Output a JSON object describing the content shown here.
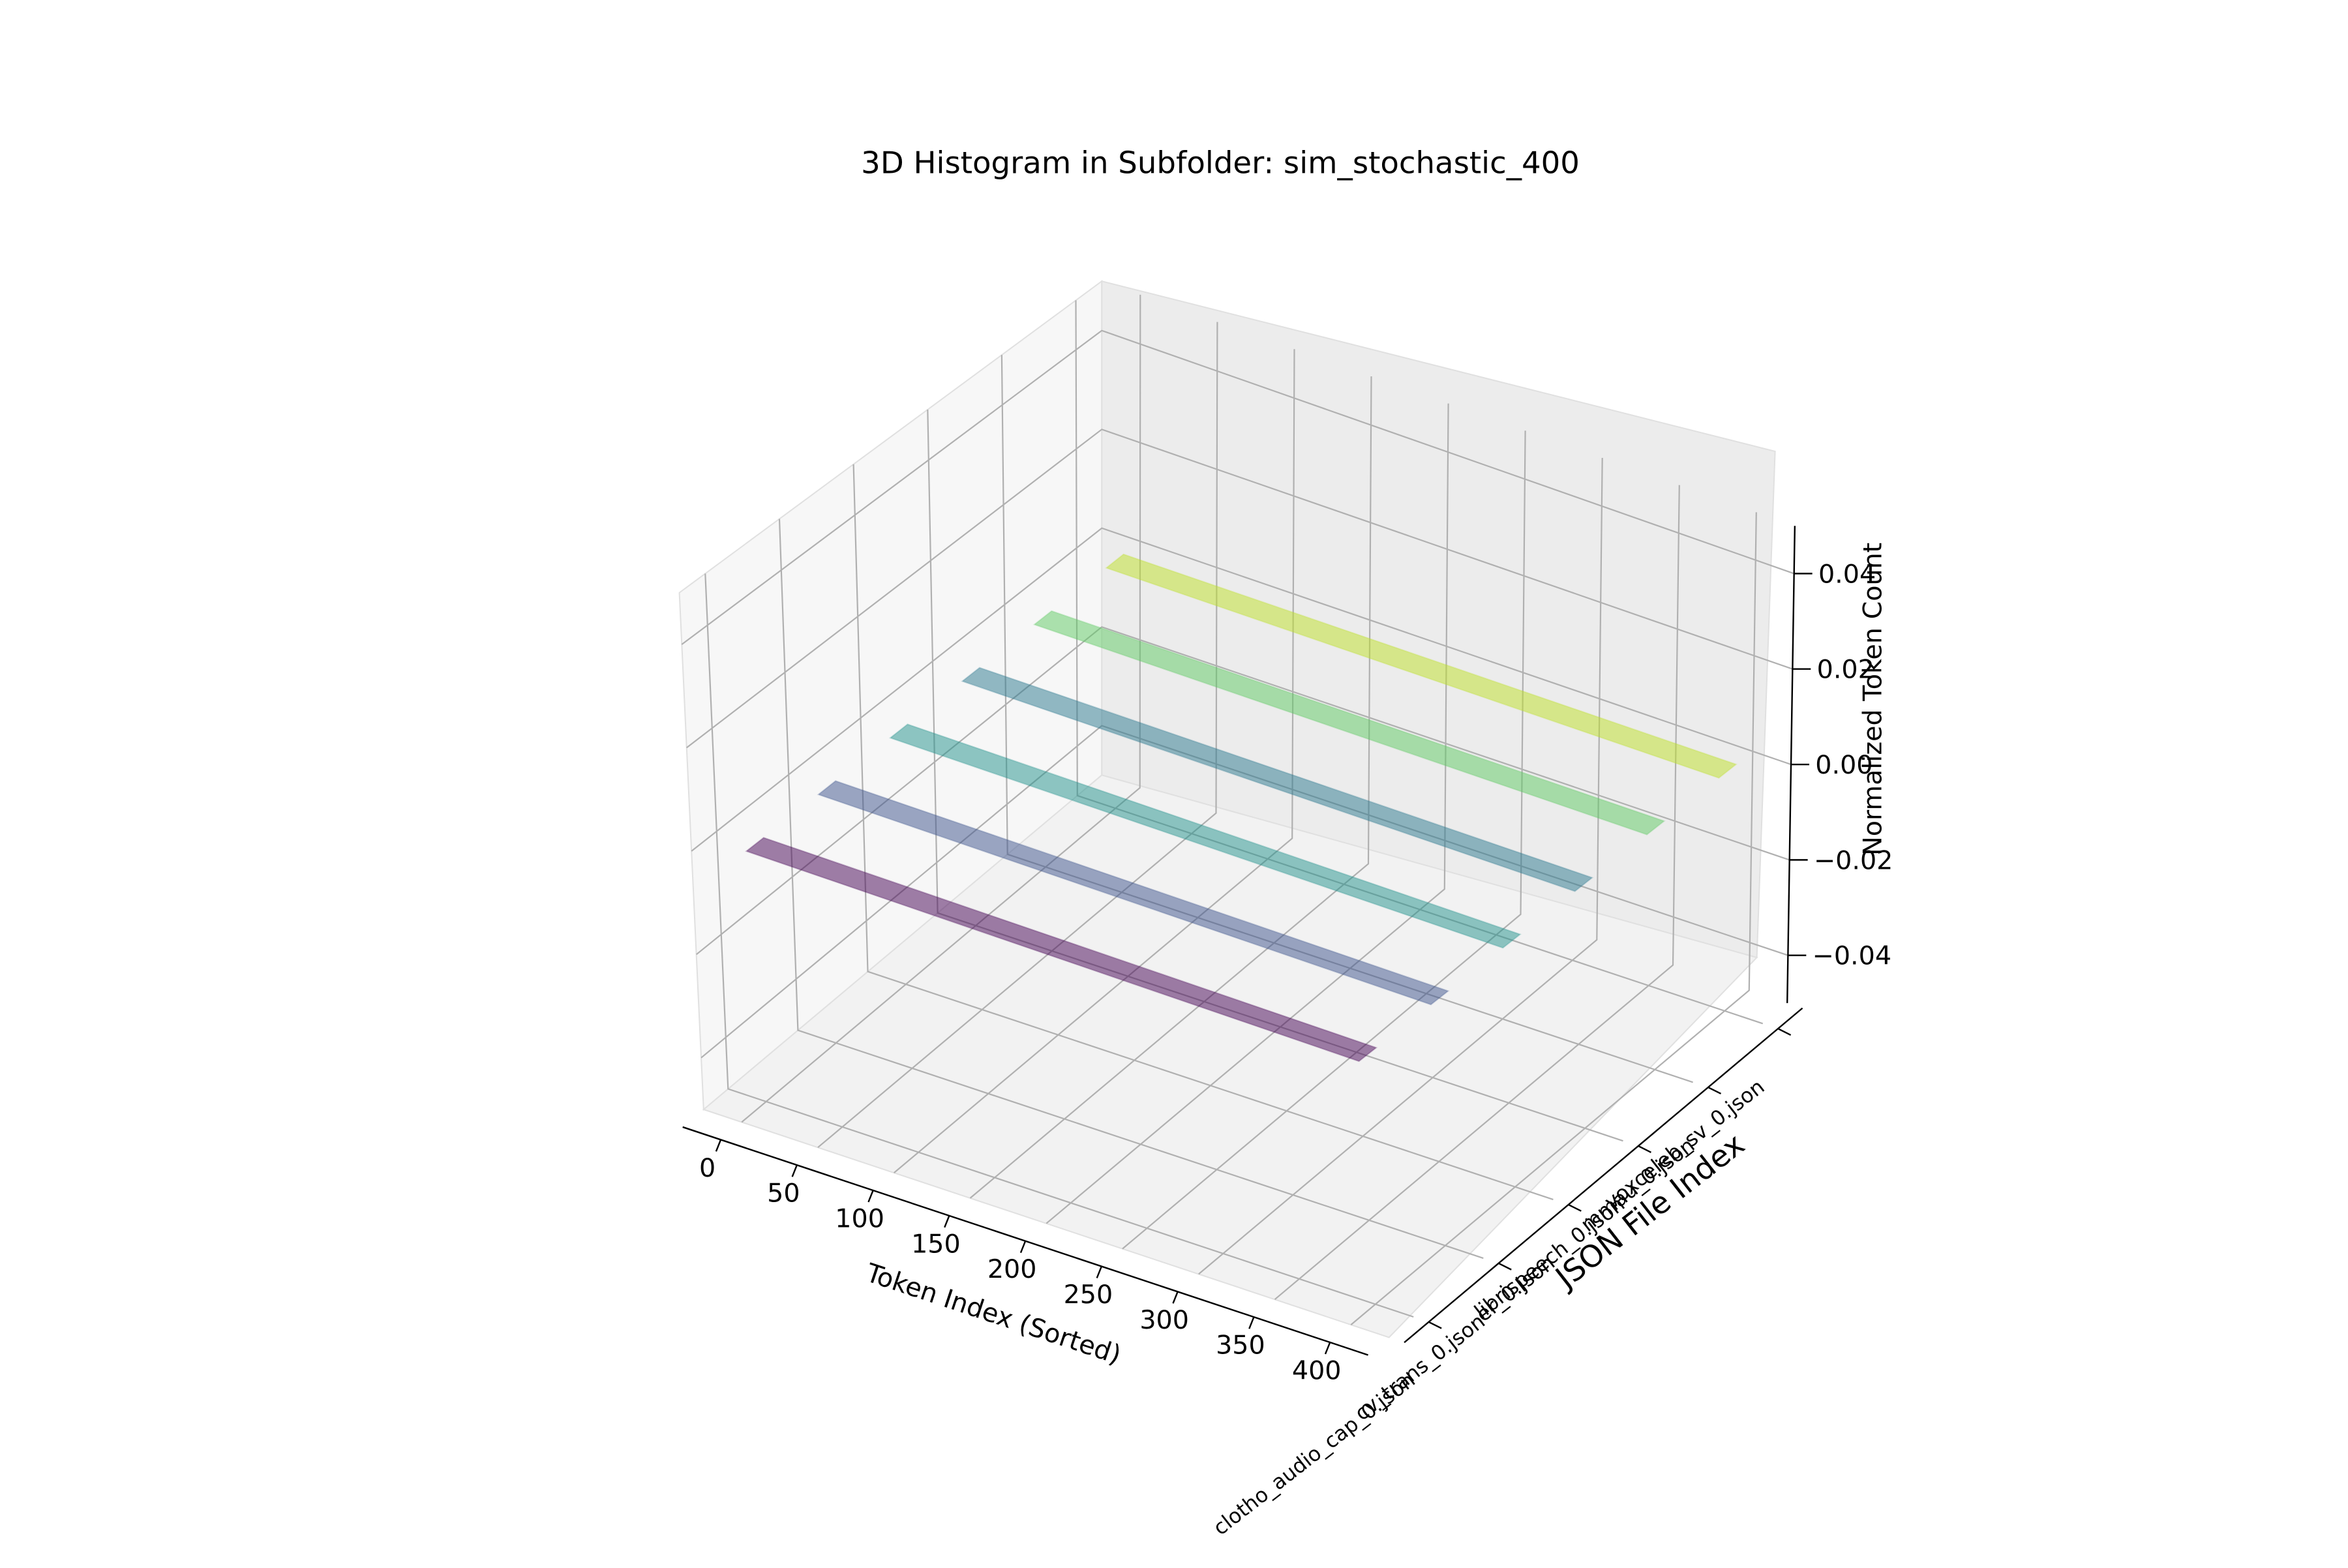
{
  "chart_data": {
    "type": "bar3d",
    "title": "3D Histogram in Subfolder: sim_stochastic_400",
    "xlabel": "Token Index (Sorted)",
    "ylabel": "JSON File Index",
    "zlabel": "Normalized Token Count",
    "xlim": [
      -25,
      425
    ],
    "zlim": [
      -0.05,
      0.05
    ],
    "x_ticks": [
      "0",
      "50",
      "100",
      "150",
      "200",
      "250",
      "300",
      "350",
      "400"
    ],
    "y_ticks": [
      "clotho_audio_cap_0.json",
      "cv_trans_0.json",
      "er_0.json",
      "librispeech_0.json",
      "mmau_0.json",
      "voxceleb_sv_0.json"
    ],
    "z_ticks": [
      "−0.04",
      "−0.02",
      "0.00",
      "0.02",
      "0.04"
    ],
    "series": [
      {
        "name": "clotho_audio_cap_0.json",
        "y": 0,
        "x_range": [
          0,
          400
        ],
        "value": 0.0,
        "color": "#440154"
      },
      {
        "name": "cv_trans_0.json",
        "y": 1,
        "x_range": [
          0,
          400
        ],
        "value": 0.0,
        "color": "#3b528b"
      },
      {
        "name": "er_0.json",
        "y": 2,
        "x_range": [
          0,
          400
        ],
        "value": 0.0,
        "color": "#21918c"
      },
      {
        "name": "librispeech_0.json",
        "y": 3,
        "x_range": [
          0,
          400
        ],
        "value": 0.0,
        "color": "#2a788e"
      },
      {
        "name": "mmau_0.json",
        "y": 4,
        "x_range": [
          0,
          400
        ],
        "value": 0.0,
        "color": "#5ec962"
      },
      {
        "name": "voxceleb_sv_0.json",
        "y": 5,
        "x_range": [
          0,
          400
        ],
        "value": 0.0,
        "color": "#bddf26"
      }
    ],
    "bar_alpha": 0.5,
    "grid": true
  }
}
